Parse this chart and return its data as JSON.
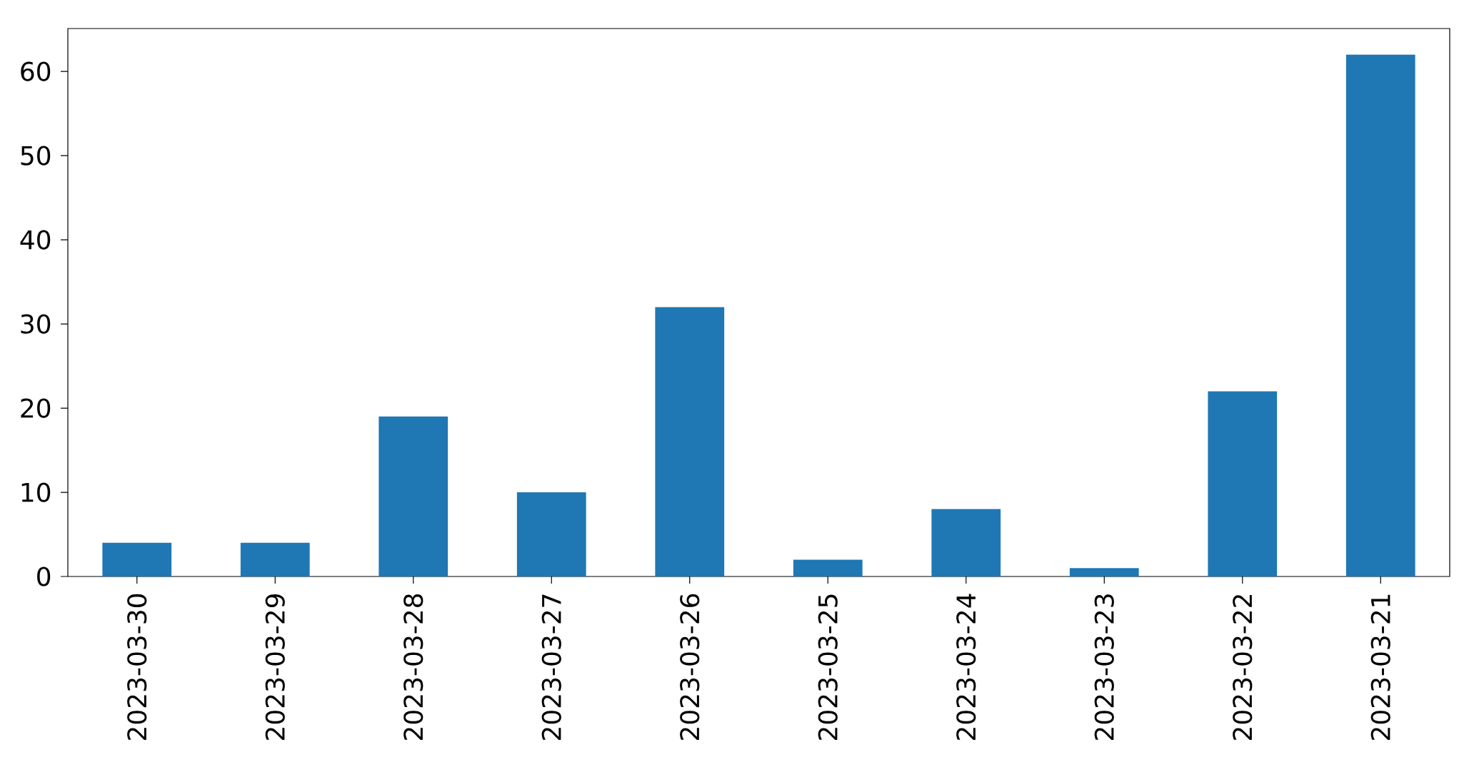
{
  "chart_data": {
    "type": "bar",
    "categories": [
      "2023-03-30",
      "2023-03-29",
      "2023-03-28",
      "2023-03-27",
      "2023-03-26",
      "2023-03-25",
      "2023-03-24",
      "2023-03-23",
      "2023-03-22",
      "2023-03-21"
    ],
    "values": [
      4,
      4,
      19,
      10,
      32,
      2,
      8,
      1,
      22,
      62
    ],
    "color": "#1f77b4",
    "ylim": [
      0,
      65.1
    ],
    "yticks": [
      0,
      10,
      20,
      30,
      40,
      50,
      60
    ]
  }
}
